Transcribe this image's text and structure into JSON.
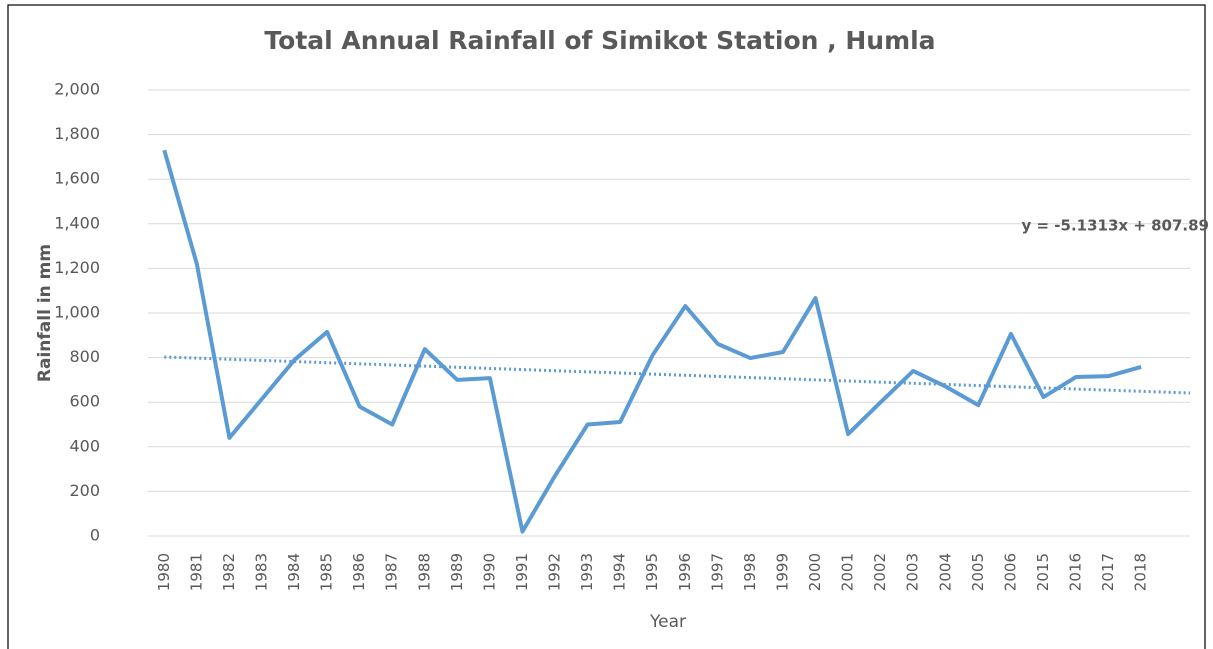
{
  "chart_data": {
    "type": "line",
    "title": "Total Annual Rainfall of Simikot Station , Humla",
    "x_label": "Year",
    "y_label": "Rainfall in mm",
    "categories": [
      "1980",
      "1981",
      "1982",
      "1983",
      "1984",
      "1985",
      "1986",
      "1987",
      "1988",
      "1989",
      "1990",
      "1991",
      "1992",
      "1993",
      "1994",
      "1995",
      "1996",
      "1997",
      "1998",
      "1999",
      "2000",
      "2001",
      "2002",
      "2003",
      "2004",
      "2005",
      "2006",
      "2015",
      "2016",
      "2017",
      "2018",
      null
    ],
    "series": [
      {
        "name": "Rainfall",
        "color": "#5b9bd5",
        "values": [
          1730,
          1220,
          440,
          615,
          790,
          915,
          580,
          500,
          838,
          700,
          708,
          20,
          270,
          500,
          511,
          812,
          1031,
          861,
          798,
          825,
          1067,
          457,
          600,
          740,
          670,
          587,
          906,
          623,
          713,
          717,
          758,
          null
        ]
      }
    ],
    "trendline": {
      "slope": -5.1313,
      "intercept": 807.89,
      "label": "y = -5.1313x + 807.89",
      "color": "#5b9bd5"
    },
    "ylim": [
      0,
      2000
    ],
    "yticks": [
      0,
      200,
      400,
      600,
      800,
      {
        "value": 1000,
        "label": "1,000"
      },
      {
        "value": 1200,
        "label": "1,200"
      },
      {
        "value": 1400,
        "label": "1,400"
      },
      {
        "value": 1600,
        "label": "1,600"
      },
      {
        "value": 1800,
        "label": "1,800"
      },
      {
        "value": 2000,
        "label": "2,000"
      }
    ],
    "grid": true,
    "legend": false
  }
}
